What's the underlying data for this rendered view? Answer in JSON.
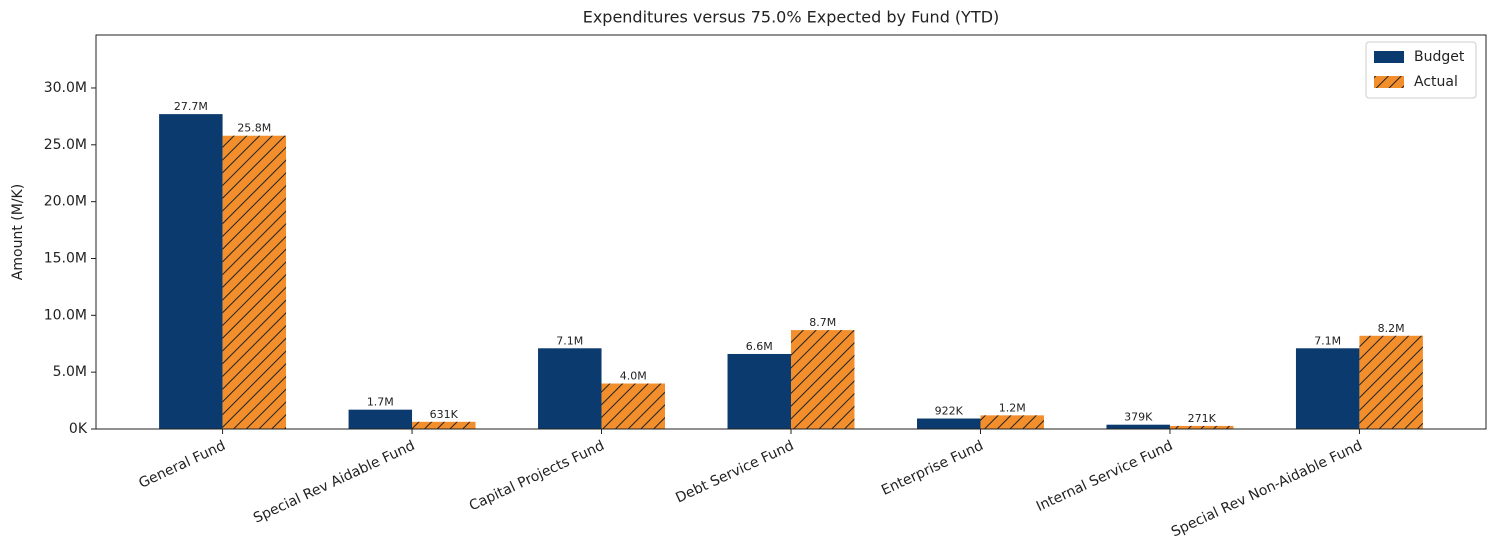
{
  "chart_data": {
    "type": "bar",
    "title": "Expenditures versus 75.0% Expected by Fund (YTD)",
    "y_label": "Amount (M/K)",
    "categories": [
      "General Fund",
      "Special Rev Aidable Fund",
      "Capital Projects Fund",
      "Debt Service Fund",
      "Enterprise Fund",
      "Internal Service Fund",
      "Special Rev Non-Aidable Fund"
    ],
    "series": [
      {
        "name": "Budget",
        "color": "#0b3a6e",
        "values": [
          27700000,
          1700000,
          7100000,
          6600000,
          922000,
          379000,
          7100000
        ],
        "value_labels": [
          "27.7M",
          "1.7M",
          "7.1M",
          "6.6M",
          "922K",
          "379K",
          "7.1M"
        ]
      },
      {
        "name": "Actual",
        "color": "#f28e2b",
        "hatch": "//",
        "values": [
          25800000,
          631000,
          4000000,
          8700000,
          1200000,
          271000,
          8200000
        ],
        "value_labels": [
          "25.8M",
          "631K",
          "4.0M",
          "8.7M",
          "1.2M",
          "271K",
          "8.2M"
        ]
      }
    ],
    "ylim": [
      0,
      34660000
    ],
    "yticks": [
      {
        "value": 0,
        "label": "0K"
      },
      {
        "value": 5000000,
        "label": "5.0M"
      },
      {
        "value": 10000000,
        "label": "10.0M"
      },
      {
        "value": 15000000,
        "label": "15.0M"
      },
      {
        "value": 20000000,
        "label": "20.0M"
      },
      {
        "value": 25000000,
        "label": "25.0M"
      },
      {
        "value": 30000000,
        "label": "30.0M"
      }
    ],
    "legend": "upper right"
  }
}
